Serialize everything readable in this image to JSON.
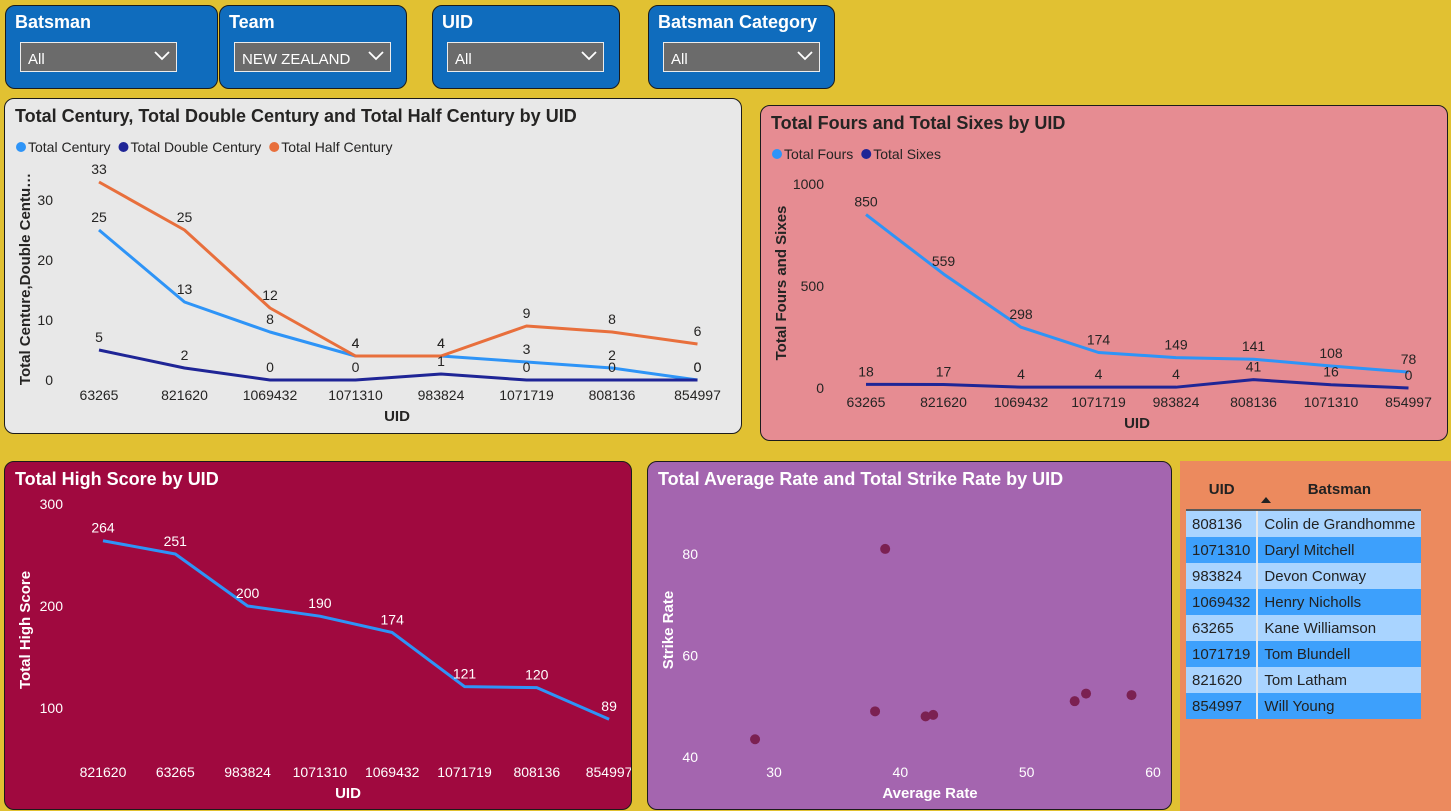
{
  "slicers": [
    {
      "title": "Batsman",
      "value": "All"
    },
    {
      "title": "Team",
      "value": "NEW ZEALAND"
    },
    {
      "title": "UID",
      "value": "All"
    },
    {
      "title": "Batsman Category",
      "value": "All"
    }
  ],
  "colors": {
    "page_bg": "#E1C132",
    "slicer_bg": "#0F6CBD",
    "light_blue": "#2E94F7",
    "navy": "#1F2596",
    "orange": "#E86F3C",
    "scatter_dot": "#7B2152"
  },
  "chart_data": [
    {
      "type": "line",
      "title": "Total Century, Total Double Century and Total Half Century by UID",
      "xlabel": "UID",
      "ylabel": "Total Centure,Double Centu…",
      "ylim": [
        0,
        33
      ],
      "yticks": [
        "0",
        "10",
        "20",
        "30"
      ],
      "legend_position": "top-left",
      "categories": [
        "63265",
        "821620",
        "1069432",
        "1071310",
        "983824",
        "1071719",
        "808136",
        "854997"
      ],
      "series": [
        {
          "name": "Total Century",
          "color": "#2E94F7",
          "values": [
            25,
            13,
            8,
            4,
            4,
            3,
            2,
            0
          ]
        },
        {
          "name": "Total Double Century",
          "color": "#1F2596",
          "values": [
            5,
            2,
            0,
            0,
            1,
            0,
            0,
            0
          ]
        },
        {
          "name": "Total Half Century",
          "color": "#E86F3C",
          "values": [
            33,
            25,
            12,
            4,
            4,
            9,
            8,
            6
          ]
        }
      ]
    },
    {
      "type": "line",
      "title": "Total Fours and Total Sixes by UID",
      "xlabel": "UID",
      "ylabel": "Total Fours and Sixes",
      "ylim": [
        0,
        1000
      ],
      "yticks": [
        "0",
        "500",
        "1000"
      ],
      "legend_position": "top-left",
      "categories": [
        "63265",
        "821620",
        "1069432",
        "1071719",
        "983824",
        "808136",
        "1071310",
        "854997"
      ],
      "series": [
        {
          "name": "Total Fours",
          "color": "#2E94F7",
          "values": [
            850,
            559,
            298,
            174,
            149,
            141,
            108,
            78
          ]
        },
        {
          "name": "Total Sixes",
          "color": "#1F2596",
          "values": [
            18,
            17,
            4,
            4,
            4,
            41,
            16,
            0
          ]
        }
      ]
    },
    {
      "type": "line",
      "title": "Total High Score by UID",
      "xlabel": "UID",
      "ylabel": "Total High Score",
      "ylim": [
        50,
        300
      ],
      "yticks": [
        "100",
        "200",
        "300"
      ],
      "categories": [
        "821620",
        "63265",
        "983824",
        "1071310",
        "1069432",
        "1071719",
        "808136",
        "854997"
      ],
      "series": [
        {
          "color": "#2E94F7",
          "values": [
            264,
            251,
            200,
            190,
            174,
            121,
            120,
            89
          ]
        }
      ]
    },
    {
      "type": "scatter",
      "title": "Total Average Rate and Total Strike Rate by UID",
      "xlabel": "Average Rate",
      "ylabel": "Strike Rate",
      "xlim": [
        27,
        60
      ],
      "ylim": [
        37,
        88
      ],
      "xticks": [
        "30",
        "40",
        "50",
        "60"
      ],
      "yticks": [
        "40",
        "60",
        "80"
      ],
      "points": [
        {
          "x": 38.8,
          "y": 81
        },
        {
          "x": 28.5,
          "y": 43.5
        },
        {
          "x": 38.0,
          "y": 49
        },
        {
          "x": 42.0,
          "y": 48
        },
        {
          "x": 42.6,
          "y": 48.3
        },
        {
          "x": 53.8,
          "y": 51
        },
        {
          "x": 54.7,
          "y": 52.5
        },
        {
          "x": 58.3,
          "y": 52.2
        }
      ]
    }
  ],
  "table": {
    "headers": [
      "UID",
      "Batsman"
    ],
    "sort_icon": "sort-ascending-icon",
    "rows": [
      [
        "808136",
        "Colin de Grandhomme"
      ],
      [
        "1071310",
        "Daryl Mitchell"
      ],
      [
        "983824",
        "Devon Conway"
      ],
      [
        "1069432",
        "Henry Nicholls"
      ],
      [
        "63265",
        "Kane Williamson"
      ],
      [
        "1071719",
        "Tom Blundell"
      ],
      [
        "821620",
        "Tom Latham"
      ],
      [
        "854997",
        "Will Young"
      ]
    ]
  }
}
